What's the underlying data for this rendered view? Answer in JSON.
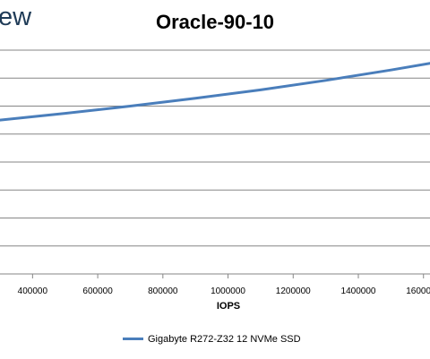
{
  "logo_text": "ew",
  "chart_data": {
    "type": "line",
    "title": "Oracle-90-10",
    "xlabel": "IOPS",
    "ylabel": "",
    "xlim": [
      300000,
      1620000
    ],
    "ylim": [
      0,
      8
    ],
    "x_ticks": [
      400000,
      600000,
      800000,
      1000000,
      1200000,
      1400000,
      1600000
    ],
    "x_tick_labels": [
      "400000",
      "600000",
      "800000",
      "1000000",
      "1200000",
      "1400000",
      "1600000"
    ],
    "y_gridlines": [
      1,
      2,
      3,
      4,
      5,
      6,
      7,
      8
    ],
    "grid": true,
    "legend_position": "bottom",
    "series": [
      {
        "name": "Gigabyte R272-Z32 12 NVMe SSD",
        "color": "#4a7ebb",
        "x": [
          300000,
          500000,
          700000,
          900000,
          1100000,
          1300000,
          1500000,
          1620000
        ],
        "y": [
          5.5,
          5.74,
          6.0,
          6.28,
          6.58,
          6.92,
          7.29,
          7.53
        ]
      }
    ]
  }
}
